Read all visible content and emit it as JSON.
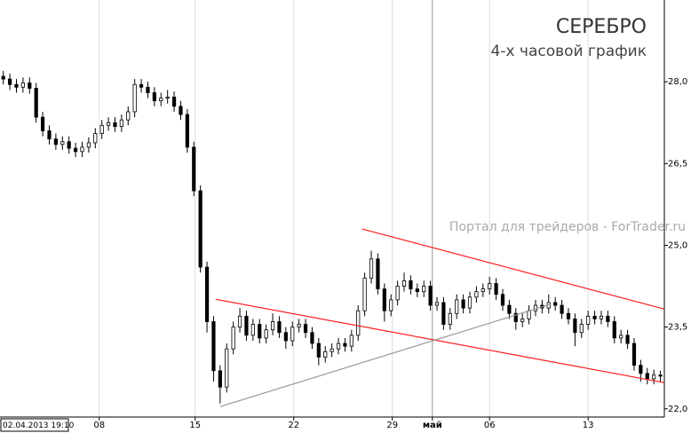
{
  "chart_data": {
    "type": "candlestick",
    "title": "СЕРЕБРО",
    "subtitle": "4-х часовой график",
    "watermark": "Портал для трейдеров - ForTrader.ru",
    "cursor_label": "02.04.2013 19:10",
    "up_color": "#ffffff",
    "down_color": "#000000",
    "wick_color": "#000000",
    "grid": true,
    "open": [
      28.1,
      28.05,
      27.95,
      27.9,
      27.98,
      27.88,
      27.35,
      27.1,
      26.95,
      26.85,
      26.9,
      26.78,
      26.72,
      26.8,
      26.88,
      27.05,
      27.2,
      27.25,
      27.18,
      27.3,
      27.45,
      27.95,
      27.9,
      27.8,
      27.65,
      27.7,
      27.72,
      27.55,
      27.4,
      26.8,
      26.0,
      24.6,
      23.6,
      22.7,
      22.4,
      23.1,
      23.5,
      23.7,
      23.35,
      23.55,
      23.3,
      23.45,
      23.6,
      23.4,
      23.25,
      23.5,
      23.55,
      23.4,
      23.2,
      22.95,
      23.05,
      23.1,
      23.2,
      23.15,
      23.35,
      23.8,
      24.4,
      24.75,
      24.2,
      23.8,
      24.0,
      24.25,
      24.35,
      24.2,
      24.15,
      24.25,
      23.9,
      23.95,
      23.55,
      23.75,
      24.0,
      23.85,
      24.05,
      24.15,
      24.2,
      24.3,
      24.1,
      23.9,
      23.75,
      23.6,
      23.65,
      23.8,
      23.9,
      23.85,
      23.95,
      23.9,
      23.75,
      23.65,
      23.4,
      23.55,
      23.7,
      23.65,
      23.7,
      23.6,
      23.3,
      23.35,
      23.2,
      22.8,
      22.65,
      22.55,
      22.62
    ],
    "high": [
      28.2,
      28.15,
      28.05,
      28.08,
      28.08,
      27.98,
      27.45,
      27.2,
      27.05,
      27.0,
      27.0,
      26.88,
      26.9,
      26.98,
      27.15,
      27.3,
      27.35,
      27.35,
      27.4,
      27.55,
      28.05,
      28.05,
      28.0,
      27.9,
      27.8,
      27.85,
      27.82,
      27.65,
      27.5,
      26.9,
      26.1,
      24.7,
      23.7,
      22.8,
      23.2,
      23.6,
      23.85,
      23.8,
      23.65,
      23.65,
      23.55,
      23.75,
      23.7,
      23.5,
      23.6,
      23.65,
      23.65,
      23.5,
      23.3,
      23.15,
      23.2,
      23.3,
      23.3,
      23.45,
      23.9,
      24.5,
      24.9,
      24.85,
      24.3,
      24.1,
      24.35,
      24.5,
      24.45,
      24.3,
      24.35,
      24.35,
      24.05,
      24.05,
      23.85,
      24.1,
      24.1,
      24.15,
      24.25,
      24.3,
      24.42,
      24.4,
      24.2,
      24.0,
      23.85,
      23.75,
      23.9,
      24.0,
      24.0,
      24.1,
      24.05,
      24.0,
      23.85,
      23.75,
      23.65,
      23.8,
      23.8,
      23.8,
      23.8,
      23.7,
      23.45,
      23.45,
      23.3,
      22.9,
      22.75,
      22.72,
      22.7
    ],
    "low": [
      27.95,
      27.85,
      27.8,
      27.8,
      27.78,
      27.25,
      27.0,
      26.85,
      26.75,
      26.75,
      26.68,
      26.62,
      26.62,
      26.7,
      26.78,
      26.95,
      27.1,
      27.08,
      27.08,
      27.2,
      27.35,
      27.8,
      27.7,
      27.55,
      27.55,
      27.6,
      27.45,
      27.3,
      26.7,
      25.9,
      24.5,
      23.4,
      22.5,
      22.1,
      22.3,
      23.0,
      23.4,
      23.25,
      23.25,
      23.2,
      23.2,
      23.35,
      23.3,
      23.1,
      23.15,
      23.4,
      23.3,
      23.1,
      22.8,
      22.85,
      22.95,
      23.0,
      23.05,
      23.05,
      23.25,
      23.7,
      24.3,
      24.1,
      23.6,
      23.7,
      23.9,
      24.15,
      24.1,
      24.05,
      24.05,
      23.8,
      23.8,
      23.45,
      23.45,
      23.65,
      23.75,
      23.75,
      23.95,
      24.05,
      24.1,
      24.0,
      23.8,
      23.65,
      23.45,
      23.5,
      23.55,
      23.7,
      23.75,
      23.75,
      23.8,
      23.65,
      23.55,
      23.15,
      23.3,
      23.45,
      23.55,
      23.55,
      23.5,
      23.2,
      23.2,
      23.1,
      22.7,
      22.5,
      22.45,
      22.45,
      22.5
    ],
    "close": [
      28.05,
      27.95,
      27.9,
      27.98,
      27.88,
      27.35,
      27.1,
      26.95,
      26.85,
      26.9,
      26.78,
      26.72,
      26.8,
      26.88,
      27.05,
      27.2,
      27.25,
      27.18,
      27.3,
      27.45,
      27.95,
      27.9,
      27.8,
      27.65,
      27.7,
      27.72,
      27.55,
      27.4,
      26.8,
      26.0,
      24.6,
      23.6,
      22.7,
      22.4,
      23.1,
      23.5,
      23.7,
      23.35,
      23.55,
      23.3,
      23.45,
      23.6,
      23.4,
      23.25,
      23.5,
      23.55,
      23.4,
      23.2,
      22.95,
      23.05,
      23.1,
      23.2,
      23.15,
      23.35,
      23.8,
      24.4,
      24.75,
      24.2,
      23.8,
      24.0,
      24.25,
      24.35,
      24.2,
      24.15,
      24.25,
      23.9,
      23.95,
      23.55,
      23.75,
      24.0,
      23.85,
      24.05,
      24.15,
      24.2,
      24.3,
      24.1,
      23.9,
      23.75,
      23.6,
      23.65,
      23.8,
      23.9,
      23.85,
      23.95,
      23.9,
      23.75,
      23.65,
      23.4,
      23.55,
      23.7,
      23.65,
      23.7,
      23.6,
      23.3,
      23.35,
      23.2,
      22.8,
      22.65,
      22.55,
      22.62,
      22.6
    ],
    "xlim": [
      -0.5,
      100.6
    ],
    "ylim": [
      21.85,
      29.5
    ],
    "xticks": [
      {
        "value": 14.6,
        "label": "08"
      },
      {
        "value": 29.2,
        "label": "15"
      },
      {
        "value": 44.2,
        "label": "22"
      },
      {
        "value": 59.2,
        "label": "29"
      },
      {
        "value": 65.3,
        "label": "май"
      },
      {
        "value": 74.0,
        "label": "06"
      },
      {
        "value": 89.0,
        "label": "13"
      }
    ],
    "yticks": [
      {
        "value": 22.0,
        "label": "22,0"
      },
      {
        "value": 23.5,
        "label": "23,5"
      },
      {
        "value": 25.0,
        "label": "25,0"
      },
      {
        "value": 26.5,
        "label": "26,5"
      },
      {
        "value": 28.0,
        "label": "28,0"
      }
    ],
    "trendlines": [
      {
        "color": "#ff2020",
        "x": [
          54.6,
          100.6
        ],
        "y": [
          25.3,
          23.83
        ]
      },
      {
        "color": "#ff2020",
        "x": [
          32.3,
          100.6
        ],
        "y": [
          24.01,
          22.48
        ]
      },
      {
        "color": "#999999",
        "x": [
          33.0,
          83.3
        ],
        "y": [
          22.04,
          23.92
        ]
      }
    ]
  }
}
